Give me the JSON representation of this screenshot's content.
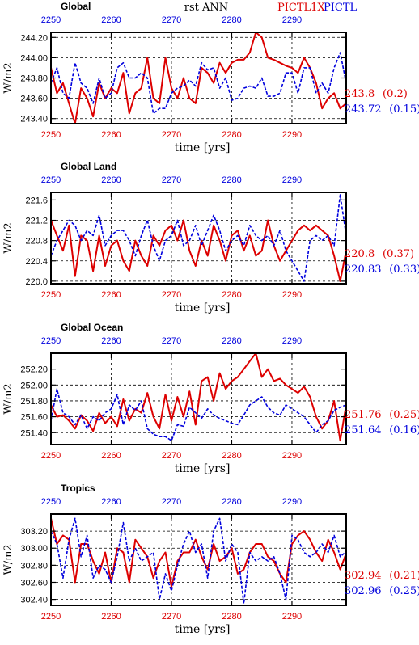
{
  "header": {
    "title": "rst  ANN",
    "legend_red": "PICTL1X",
    "legend_blue": "PICTL"
  },
  "colors": {
    "red": "#dd0000",
    "blue": "#0000dd",
    "black": "#000000"
  },
  "chart_data": [
    {
      "type": "line",
      "title": "Global",
      "xlabel": "time [yrs]",
      "ylabel": "W/m2",
      "xlim": [
        2250,
        2299
      ],
      "ylim": [
        243.35,
        244.25
      ],
      "yticks": [
        243.4,
        243.6,
        243.8,
        244.0,
        244.2
      ],
      "ytick_labels": [
        "243.40",
        "243.60",
        "243.80",
        "244.00",
        "244.20"
      ],
      "xticks": [
        2250,
        2260,
        2270,
        2280,
        2290
      ],
      "xtick_labels": [
        "2250",
        "2260",
        "2270",
        "2280",
        "2290"
      ],
      "grid": true,
      "series": [
        {
          "name": "PICTL1X",
          "color": "red",
          "style": "solid",
          "mean_label": "243.8",
          "std_label": "(0.2)",
          "x": [
            2250,
            2251,
            2252,
            2253,
            2254,
            2255,
            2256,
            2257,
            2258,
            2259,
            2260,
            2261,
            2262,
            2263,
            2264,
            2265,
            2266,
            2267,
            2268,
            2269,
            2270,
            2271,
            2272,
            2273,
            2274,
            2275,
            2276,
            2277,
            2278,
            2279,
            2280,
            2281,
            2282,
            2283,
            2284,
            2285,
            2286,
            2287,
            2288,
            2289,
            2290,
            2291,
            2292,
            2293,
            2294,
            2295,
            2296,
            2297,
            2298,
            2299
          ],
          "y": [
            243.9,
            243.65,
            243.75,
            243.55,
            243.35,
            243.7,
            243.6,
            243.42,
            243.75,
            243.6,
            243.7,
            243.65,
            243.85,
            243.45,
            243.65,
            243.7,
            244.0,
            243.6,
            243.55,
            244.0,
            243.7,
            243.6,
            243.8,
            243.6,
            243.55,
            243.9,
            243.85,
            243.75,
            243.95,
            243.85,
            243.95,
            243.98,
            243.98,
            244.05,
            244.25,
            244.2,
            244.0,
            243.98,
            243.95,
            243.92,
            243.9,
            243.85,
            244.0,
            243.9,
            243.75,
            243.5,
            243.6,
            243.65,
            243.5,
            243.55
          ]
        },
        {
          "name": "PICTL",
          "color": "blue",
          "style": "dashed",
          "mean_label": "243.72",
          "std_label": "(0.15)",
          "x": [
            2250,
            2251,
            2252,
            2253,
            2254,
            2255,
            2256,
            2257,
            2258,
            2259,
            2260,
            2261,
            2262,
            2263,
            2264,
            2265,
            2266,
            2267,
            2268,
            2269,
            2270,
            2271,
            2272,
            2273,
            2274,
            2275,
            2276,
            2277,
            2278,
            2279,
            2280,
            2281,
            2282,
            2283,
            2284,
            2285,
            2286,
            2287,
            2288,
            2289,
            2290,
            2291,
            2292,
            2293,
            2294,
            2295,
            2296,
            2297,
            2298,
            2299
          ],
          "y": [
            243.75,
            243.9,
            243.65,
            243.6,
            243.95,
            243.75,
            243.7,
            243.55,
            243.8,
            243.6,
            243.65,
            243.9,
            243.95,
            243.8,
            243.8,
            243.85,
            243.8,
            243.45,
            243.5,
            243.5,
            243.65,
            243.7,
            243.72,
            243.78,
            243.72,
            243.95,
            243.88,
            243.9,
            243.7,
            243.8,
            243.58,
            243.6,
            243.7,
            243.72,
            243.7,
            243.8,
            243.62,
            243.62,
            243.65,
            243.85,
            243.85,
            243.65,
            243.9,
            243.9,
            243.65,
            243.75,
            243.65,
            243.9,
            244.05,
            243.75
          ]
        }
      ]
    },
    {
      "type": "line",
      "title": "Global Land",
      "xlabel": "time [yrs]",
      "ylabel": "W/m2",
      "xlim": [
        2250,
        2299
      ],
      "ylim": [
        219.95,
        221.75
      ],
      "yticks": [
        220.0,
        220.4,
        220.8,
        221.2,
        221.6
      ],
      "ytick_labels": [
        "220.0",
        "220.4",
        "220.8",
        "221.2",
        "221.6"
      ],
      "xticks": [
        2250,
        2260,
        2270,
        2280,
        2290
      ],
      "xtick_labels": [
        "2250",
        "2260",
        "2270",
        "2280",
        "2290"
      ],
      "grid": true,
      "series": [
        {
          "name": "PICTL1X",
          "color": "red",
          "style": "solid",
          "mean_label": "220.8",
          "std_label": "(0.37)",
          "x": [
            2250,
            2251,
            2252,
            2253,
            2254,
            2255,
            2256,
            2257,
            2258,
            2259,
            2260,
            2261,
            2262,
            2263,
            2264,
            2265,
            2266,
            2267,
            2268,
            2269,
            2270,
            2271,
            2272,
            2273,
            2274,
            2275,
            2276,
            2277,
            2278,
            2279,
            2280,
            2281,
            2282,
            2283,
            2284,
            2285,
            2286,
            2287,
            2288,
            2289,
            2290,
            2291,
            2292,
            2293,
            2294,
            2295,
            2296,
            2297,
            2298,
            2299
          ],
          "y": [
            221.2,
            220.9,
            220.6,
            221.1,
            220.1,
            220.9,
            220.8,
            220.2,
            220.9,
            220.3,
            220.7,
            220.8,
            220.4,
            220.2,
            220.8,
            220.5,
            220.3,
            220.9,
            220.7,
            221.0,
            221.1,
            220.8,
            221.2,
            220.6,
            220.3,
            220.8,
            220.5,
            221.1,
            220.8,
            220.4,
            220.9,
            221.0,
            220.6,
            220.9,
            220.5,
            220.6,
            221.2,
            220.7,
            220.4,
            220.6,
            220.8,
            221.0,
            221.1,
            221.0,
            221.1,
            221.0,
            220.9,
            220.5,
            220.0,
            220.6
          ]
        },
        {
          "name": "PICTL",
          "color": "blue",
          "style": "dashed",
          "mean_label": "220.83",
          "std_label": "(0.33)",
          "x": [
            2250,
            2251,
            2252,
            2253,
            2254,
            2255,
            2256,
            2257,
            2258,
            2259,
            2260,
            2261,
            2262,
            2263,
            2264,
            2265,
            2266,
            2267,
            2268,
            2269,
            2270,
            2271,
            2272,
            2273,
            2274,
            2275,
            2276,
            2277,
            2278,
            2279,
            2280,
            2281,
            2282,
            2283,
            2284,
            2285,
            2286,
            2287,
            2288,
            2289,
            2290,
            2291,
            2292,
            2293,
            2294,
            2295,
            2296,
            2297,
            2298,
            2299
          ],
          "y": [
            220.5,
            220.8,
            221.0,
            221.2,
            221.1,
            220.8,
            221.0,
            220.9,
            221.3,
            220.7,
            220.9,
            221.0,
            221.0,
            220.8,
            220.5,
            220.9,
            221.2,
            220.7,
            220.4,
            220.8,
            220.9,
            221.2,
            220.7,
            220.8,
            221.1,
            220.7,
            221.0,
            221.3,
            221.0,
            220.6,
            220.8,
            220.9,
            220.7,
            221.1,
            220.9,
            220.8,
            220.9,
            220.7,
            221.0,
            220.6,
            220.4,
            220.2,
            220.0,
            220.8,
            220.9,
            220.8,
            220.9,
            220.7,
            221.7,
            220.9
          ]
        }
      ]
    },
    {
      "type": "line",
      "title": "Global Ocean",
      "xlabel": "time [yrs]",
      "ylabel": "W/m2",
      "xlim": [
        2250,
        2299
      ],
      "ylim": [
        251.25,
        252.4
      ],
      "yticks": [
        251.4,
        251.6,
        251.8,
        252.0,
        252.2
      ],
      "ytick_labels": [
        "251.40",
        "251.60",
        "251.80",
        "252.00",
        "252.20"
      ],
      "xticks": [
        2250,
        2260,
        2270,
        2280,
        2290
      ],
      "xtick_labels": [
        "2250",
        "2260",
        "2270",
        "2280",
        "2290"
      ],
      "grid": true,
      "series": [
        {
          "name": "PICTL1X",
          "color": "red",
          "style": "solid",
          "mean_label": "251.76",
          "std_label": "(0.25)",
          "x": [
            2250,
            2251,
            2252,
            2253,
            2254,
            2255,
            2256,
            2257,
            2258,
            2259,
            2260,
            2261,
            2262,
            2263,
            2264,
            2265,
            2266,
            2267,
            2268,
            2269,
            2270,
            2271,
            2272,
            2273,
            2274,
            2275,
            2276,
            2277,
            2278,
            2279,
            2280,
            2281,
            2282,
            2283,
            2284,
            2285,
            2286,
            2287,
            2288,
            2289,
            2290,
            2291,
            2292,
            2293,
            2294,
            2295,
            2296,
            2297,
            2298,
            2299
          ],
          "y": [
            251.75,
            251.6,
            251.62,
            251.55,
            251.45,
            251.62,
            251.55,
            251.42,
            251.65,
            251.52,
            251.6,
            251.48,
            251.82,
            251.55,
            251.7,
            251.65,
            251.9,
            251.6,
            251.45,
            251.88,
            251.55,
            251.85,
            251.6,
            251.92,
            251.5,
            252.05,
            252.1,
            251.8,
            252.15,
            251.95,
            252.05,
            252.1,
            252.2,
            252.3,
            252.4,
            252.1,
            252.2,
            252.05,
            252.08,
            252.0,
            251.95,
            251.9,
            251.98,
            251.85,
            251.6,
            251.45,
            251.55,
            251.8,
            251.3,
            251.75
          ]
        },
        {
          "name": "PICTL",
          "color": "blue",
          "style": "dashed",
          "mean_label": "251.64",
          "std_label": "(0.16)",
          "x": [
            2250,
            2251,
            2252,
            2253,
            2254,
            2255,
            2256,
            2257,
            2258,
            2259,
            2260,
            2261,
            2262,
            2263,
            2264,
            2265,
            2266,
            2267,
            2268,
            2269,
            2270,
            2271,
            2272,
            2273,
            2274,
            2275,
            2276,
            2277,
            2278,
            2279,
            2280,
            2281,
            2282,
            2283,
            2284,
            2285,
            2286,
            2287,
            2288,
            2289,
            2290,
            2291,
            2292,
            2293,
            2294,
            2295,
            2296,
            2297,
            2298,
            2299
          ],
          "y": [
            251.55,
            251.95,
            251.65,
            251.6,
            251.5,
            251.62,
            251.45,
            251.6,
            251.55,
            251.65,
            251.7,
            251.88,
            251.5,
            251.75,
            251.68,
            251.8,
            251.45,
            251.38,
            251.35,
            251.35,
            251.3,
            251.5,
            251.48,
            251.72,
            251.65,
            251.58,
            251.7,
            251.62,
            251.58,
            251.55,
            251.52,
            251.5,
            251.62,
            251.75,
            251.8,
            251.85,
            251.72,
            251.65,
            251.62,
            251.75,
            251.7,
            251.65,
            251.6,
            251.5,
            251.4,
            251.5,
            251.55,
            251.68,
            251.72,
            251.75
          ]
        }
      ]
    },
    {
      "type": "line",
      "title": "Tropics",
      "xlabel": "time [yrs]",
      "ylabel": "W/m2",
      "xlim": [
        2250,
        2299
      ],
      "ylim": [
        302.33,
        303.4
      ],
      "yticks": [
        302.4,
        302.6,
        302.8,
        303.0,
        303.2
      ],
      "ytick_labels": [
        "302.40",
        "302.60",
        "302.80",
        "303.00",
        "303.20"
      ],
      "xticks": [
        2250,
        2260,
        2270,
        2280,
        2290
      ],
      "xtick_labels": [
        "2250",
        "2260",
        "2270",
        "2280",
        "2290"
      ],
      "grid": true,
      "series": [
        {
          "name": "PICTL1X",
          "color": "red",
          "style": "solid",
          "mean_label": "302.94",
          "std_label": "(0.21)",
          "x": [
            2250,
            2251,
            2252,
            2253,
            2254,
            2255,
            2256,
            2257,
            2258,
            2259,
            2260,
            2261,
            2262,
            2263,
            2264,
            2265,
            2266,
            2267,
            2268,
            2269,
            2270,
            2271,
            2272,
            2273,
            2274,
            2275,
            2276,
            2277,
            2278,
            2279,
            2280,
            2281,
            2282,
            2283,
            2284,
            2285,
            2286,
            2287,
            2288,
            2289,
            2290,
            2291,
            2292,
            2293,
            2294,
            2295,
            2296,
            2297,
            2298,
            2299
          ],
          "y": [
            303.35,
            303.05,
            303.15,
            303.1,
            302.6,
            303.05,
            303.05,
            302.85,
            302.7,
            302.95,
            302.6,
            303.0,
            302.95,
            302.6,
            303.1,
            303.0,
            302.9,
            302.65,
            302.85,
            302.95,
            302.55,
            302.85,
            302.95,
            302.95,
            303.1,
            302.9,
            302.75,
            303.05,
            302.85,
            302.9,
            303.0,
            302.7,
            302.75,
            302.95,
            303.05,
            303.05,
            302.9,
            302.85,
            302.7,
            302.6,
            303.05,
            303.15,
            303.2,
            303.1,
            302.95,
            302.85,
            303.1,
            302.95,
            302.75,
            302.94
          ]
        },
        {
          "name": "PICTL",
          "color": "blue",
          "style": "dashed",
          "mean_label": "302.96",
          "std_label": "(0.25)",
          "x": [
            2250,
            2251,
            2252,
            2253,
            2254,
            2255,
            2256,
            2257,
            2258,
            2259,
            2260,
            2261,
            2262,
            2263,
            2264,
            2265,
            2266,
            2267,
            2268,
            2269,
            2270,
            2271,
            2272,
            2273,
            2274,
            2275,
            2276,
            2277,
            2278,
            2279,
            2280,
            2281,
            2282,
            2283,
            2284,
            2285,
            2286,
            2287,
            2288,
            2289,
            2290,
            2291,
            2292,
            2293,
            2294,
            2295,
            2296,
            2297,
            2298,
            2299
          ],
          "y": [
            303.2,
            303.05,
            302.65,
            303.1,
            303.35,
            302.9,
            303.15,
            302.65,
            302.8,
            302.75,
            302.6,
            302.9,
            303.3,
            302.85,
            303.0,
            302.85,
            302.9,
            302.95,
            302.4,
            302.7,
            302.5,
            302.8,
            303.05,
            303.2,
            302.95,
            303.05,
            302.65,
            303.2,
            303.35,
            302.85,
            303.05,
            302.95,
            302.35,
            302.95,
            302.85,
            302.9,
            302.85,
            302.9,
            302.7,
            302.4,
            303.15,
            303.1,
            302.95,
            302.9,
            302.95,
            303.05,
            302.95,
            303.15,
            302.9,
            302.96
          ]
        }
      ]
    }
  ]
}
